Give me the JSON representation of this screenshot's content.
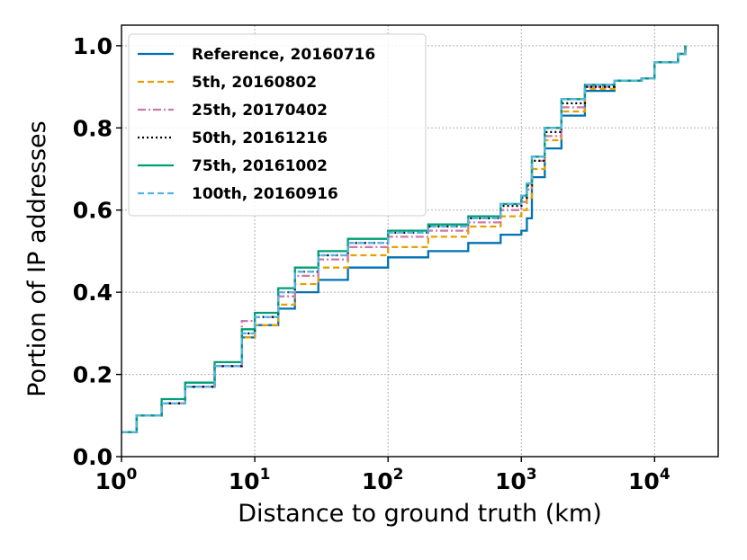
{
  "chart_data": {
    "type": "line",
    "xlabel": "Distance to ground truth (km)",
    "ylabel": "Portion of IP addresses",
    "x_scale": "log",
    "xlim": [
      1,
      30000
    ],
    "ylim": [
      0,
      1.05
    ],
    "x_ticks": [
      {
        "value": 1,
        "base": "10",
        "exp": "0"
      },
      {
        "value": 10,
        "base": "10",
        "exp": "1"
      },
      {
        "value": 100,
        "base": "10",
        "exp": "2"
      },
      {
        "value": 1000,
        "base": "10",
        "exp": "3"
      },
      {
        "value": 10000,
        "base": "10",
        "exp": "4"
      }
    ],
    "y_ticks": [
      {
        "value": 0.0,
        "label": "0.0"
      },
      {
        "value": 0.2,
        "label": "0.2"
      },
      {
        "value": 0.4,
        "label": "0.4"
      },
      {
        "value": 0.6,
        "label": "0.6"
      },
      {
        "value": 0.8,
        "label": "0.8"
      },
      {
        "value": 1.0,
        "label": "1.0"
      }
    ],
    "grid": true,
    "legend_position": "top-left",
    "series": [
      {
        "name": "Reference, 20160716",
        "color": "#0072b2",
        "dash": "solid",
        "x": [
          1,
          1.3,
          2,
          3,
          5,
          8,
          10,
          15,
          20,
          30,
          50,
          100,
          200,
          400,
          700,
          1000,
          1100,
          1200,
          1500,
          2000,
          3000,
          5000,
          8000,
          10000,
          15000,
          17000
        ],
        "y": [
          0.06,
          0.1,
          0.13,
          0.17,
          0.22,
          0.29,
          0.32,
          0.36,
          0.4,
          0.43,
          0.46,
          0.485,
          0.5,
          0.52,
          0.54,
          0.55,
          0.58,
          0.68,
          0.75,
          0.83,
          0.89,
          0.915,
          0.92,
          0.96,
          0.98,
          1.0
        ]
      },
      {
        "name": "5th, 20160802",
        "color": "#e69f00",
        "dash": "dashed",
        "x": [
          1,
          1.3,
          2,
          3,
          5,
          8,
          10,
          15,
          20,
          30,
          50,
          100,
          200,
          400,
          700,
          1000,
          1100,
          1200,
          1500,
          2000,
          3000,
          5000,
          8000,
          10000,
          15000,
          17000
        ],
        "y": [
          0.06,
          0.1,
          0.13,
          0.17,
          0.22,
          0.29,
          0.32,
          0.37,
          0.42,
          0.46,
          0.49,
          0.51,
          0.535,
          0.56,
          0.585,
          0.6,
          0.63,
          0.7,
          0.77,
          0.84,
          0.895,
          0.915,
          0.92,
          0.96,
          0.98,
          1.0
        ]
      },
      {
        "name": "25th, 20170402",
        "color": "#cc79a7",
        "dash": "dashdot",
        "x": [
          1,
          1.3,
          2,
          3,
          5,
          8,
          10,
          15,
          20,
          30,
          50,
          100,
          200,
          400,
          700,
          1000,
          1100,
          1200,
          1500,
          2000,
          3000,
          5000,
          8000,
          10000,
          15000,
          17000
        ],
        "y": [
          0.06,
          0.1,
          0.13,
          0.17,
          0.22,
          0.33,
          0.34,
          0.39,
          0.44,
          0.48,
          0.51,
          0.535,
          0.55,
          0.57,
          0.6,
          0.62,
          0.65,
          0.72,
          0.78,
          0.85,
          0.9,
          0.915,
          0.92,
          0.96,
          0.98,
          1.0
        ]
      },
      {
        "name": "50th, 20161216",
        "color": "#000000",
        "dash": "dotted",
        "x": [
          1,
          1.3,
          2,
          3,
          5,
          8,
          10,
          15,
          20,
          30,
          50,
          100,
          200,
          400,
          700,
          1000,
          1100,
          1200,
          1500,
          2000,
          3000,
          5000,
          8000,
          10000,
          15000,
          17000
        ],
        "y": [
          0.06,
          0.1,
          0.13,
          0.17,
          0.22,
          0.3,
          0.34,
          0.4,
          0.45,
          0.49,
          0.52,
          0.545,
          0.56,
          0.58,
          0.61,
          0.63,
          0.66,
          0.72,
          0.79,
          0.86,
          0.9,
          0.915,
          0.92,
          0.96,
          0.98,
          1.0
        ]
      },
      {
        "name": "75th, 20161002",
        "color": "#009e73",
        "dash": "solid",
        "x": [
          1,
          1.3,
          2,
          3,
          5,
          8,
          10,
          15,
          20,
          30,
          50,
          100,
          200,
          400,
          700,
          1000,
          1100,
          1200,
          1500,
          2000,
          3000,
          5000,
          8000,
          10000,
          15000,
          17000
        ],
        "y": [
          0.06,
          0.1,
          0.14,
          0.18,
          0.23,
          0.31,
          0.35,
          0.41,
          0.46,
          0.5,
          0.53,
          0.55,
          0.565,
          0.585,
          0.615,
          0.635,
          0.665,
          0.73,
          0.8,
          0.87,
          0.905,
          0.915,
          0.92,
          0.96,
          0.98,
          1.0
        ]
      },
      {
        "name": "100th, 20160916",
        "color": "#56b4e9",
        "dash": "dashed",
        "x": [
          1,
          1.3,
          2,
          3,
          5,
          8,
          10,
          15,
          20,
          30,
          50,
          100,
          200,
          400,
          700,
          1000,
          1100,
          1200,
          1500,
          2000,
          3000,
          5000,
          8000,
          10000,
          15000,
          17000
        ],
        "y": [
          0.06,
          0.1,
          0.13,
          0.17,
          0.22,
          0.3,
          0.34,
          0.4,
          0.45,
          0.49,
          0.52,
          0.545,
          0.56,
          0.58,
          0.615,
          0.635,
          0.665,
          0.73,
          0.8,
          0.87,
          0.905,
          0.915,
          0.92,
          0.96,
          0.98,
          1.0
        ]
      }
    ]
  }
}
